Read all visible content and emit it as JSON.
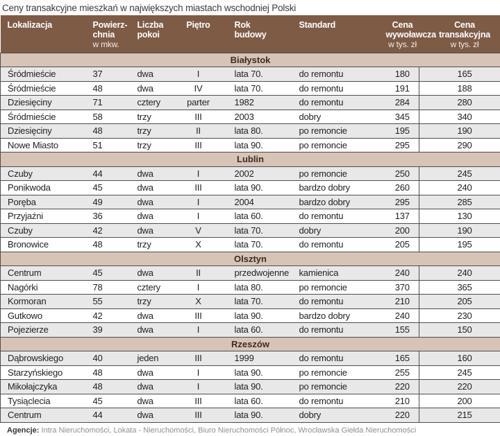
{
  "chart_data": {
    "type": "table",
    "title": "Ceny transakcyjne mieszkań w największych miastach wschodniej Polski",
    "columns": [
      "Lokalizacja",
      "Powierzchnia w mkw.",
      "Liczba pokoi",
      "Piętro",
      "Rok budowy",
      "Standard",
      "Cena wywoławcza w tys. zł",
      "Cena transakcyjna w tys. zł"
    ],
    "sections": [
      {
        "city": "Białystok",
        "rows": [
          [
            "Śródmieście",
            "37",
            "dwa",
            "I",
            "lata 70.",
            "do remontu",
            "180",
            "165"
          ],
          [
            "Śródmieście",
            "48",
            "dwa",
            "IV",
            "lata 70.",
            "do remontu",
            "191",
            "188"
          ],
          [
            "Dziesięciny",
            "71",
            "cztery",
            "parter",
            "1982",
            "do remontu",
            "284",
            "280"
          ],
          [
            "Śródmieście",
            "58",
            "trzy",
            "III",
            "2003",
            "dobry",
            "345",
            "340"
          ],
          [
            "Dziesięciny",
            "48",
            "trzy",
            "II",
            "lata 80.",
            "po remoncie",
            "195",
            "190"
          ],
          [
            "Nowe Miasto",
            "51",
            "trzy",
            "III",
            "lata 90.",
            "po remoncie",
            "295",
            "290"
          ]
        ]
      },
      {
        "city": "Lublin",
        "rows": [
          [
            "Czuby",
            "44",
            "dwa",
            "I",
            "2002",
            "po remoncie",
            "250",
            "245"
          ],
          [
            "Ponikwoda",
            "45",
            "dwa",
            "III",
            "lata 90.",
            "bardzo dobry",
            "260",
            "240"
          ],
          [
            "Poręba",
            "49",
            "dwa",
            "I",
            "2004",
            "bardzo dobry",
            "295",
            "285"
          ],
          [
            "Przyjaźni",
            "36",
            "dwa",
            "I",
            "lata 60.",
            "do remontu",
            "137",
            "130"
          ],
          [
            "Czuby",
            "42",
            "dwa",
            "V",
            "lata 70.",
            "dobry",
            "200",
            "190"
          ],
          [
            "Bronowice",
            "48",
            "trzy",
            "X",
            "lata 70.",
            "do remontu",
            "205",
            "195"
          ]
        ]
      },
      {
        "city": "Olsztyn",
        "rows": [
          [
            "Centrum",
            "45",
            "dwa",
            "II",
            "przedwojenne",
            "kamienica",
            "240",
            "240"
          ],
          [
            "Nagórki",
            "78",
            "cztery",
            "I",
            "lata 80.",
            "po remoncie",
            "370",
            "365"
          ],
          [
            "Kormoran",
            "55",
            "trzy",
            "X",
            "lata 70.",
            "do remontu",
            "210",
            "205"
          ],
          [
            "Gutkowo",
            "42",
            "dwa",
            "III",
            "lata 90.",
            "bardzo dobry",
            "240",
            "230"
          ],
          [
            "Pojezierze",
            "39",
            "dwa",
            "I",
            "lata 60.",
            "do remontu",
            "155",
            "150"
          ]
        ]
      },
      {
        "city": "Rzeszów",
        "rows": [
          [
            "Dąbrowskiego",
            "40",
            "jeden",
            "III",
            "1999",
            "do remontu",
            "165",
            "160"
          ],
          [
            "Starzyńskiego",
            "48",
            "dwa",
            "I",
            "lata 90.",
            "po remoncie",
            "255",
            "245"
          ],
          [
            "Mikołajczyka",
            "48",
            "dwa",
            "I",
            "lata 90.",
            "po remoncie",
            "220",
            "220"
          ],
          [
            "Tysiąclecia",
            "45",
            "dwa",
            "III",
            "lata 60.",
            "do remontu",
            "210",
            "200"
          ],
          [
            "Centrum",
            "44",
            "dwa",
            "III",
            "lata 90.",
            "dobry",
            "220",
            "215"
          ]
        ]
      }
    ]
  },
  "header": {
    "columns": [
      {
        "id": "lokalizacja",
        "lines": [
          "Lokalizacja"
        ],
        "sub": ""
      },
      {
        "id": "powierzchnia",
        "lines": [
          "Powierz-",
          "chnia"
        ],
        "sub": "w mkw."
      },
      {
        "id": "liczba-pokoi",
        "lines": [
          "Liczba",
          "pokoi"
        ],
        "sub": ""
      },
      {
        "id": "pietro",
        "lines": [
          "Piętro"
        ],
        "sub": ""
      },
      {
        "id": "rok-budowy",
        "lines": [
          "Rok",
          "budowy"
        ],
        "sub": ""
      },
      {
        "id": "standard",
        "lines": [
          "Standard"
        ],
        "sub": ""
      },
      {
        "id": "cena-wywolawcza",
        "lines": [
          "Cena",
          "wywoławcza"
        ],
        "sub": "w tys. zł"
      },
      {
        "id": "cena-transakcyjna",
        "lines": [
          "Cena",
          "transakcyjna"
        ],
        "sub": "w tys. zł"
      }
    ]
  },
  "footer": {
    "label": "Agencje:",
    "agencies": "Intra Nieruchomości, Lokata - Nieruchomości,  Biuro Nieruchomości Północ,  Wrocławska Giełda Nieruchomości"
  },
  "colors": {
    "header_bg": "#7d5b45",
    "section_band_bg": "#d8c3b7",
    "row_alt_bg": "#e8e8e8",
    "row_bg": "#ffffff",
    "grid_border": "#4d4d4d",
    "header_text": "#ffffff",
    "body_text": "#1f1f1f",
    "footer_text": "#8f8f8f"
  }
}
